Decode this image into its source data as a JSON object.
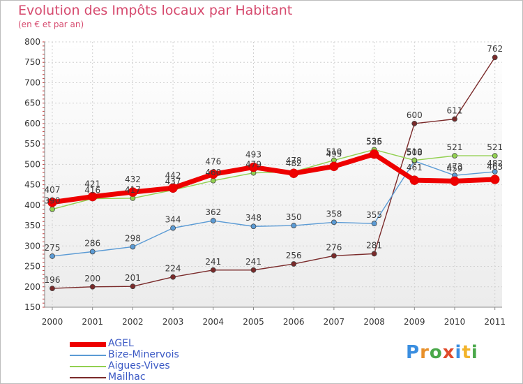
{
  "header": {
    "title": "Evolution des Impôts locaux par Habitant",
    "subtitle": "(en € et par an)"
  },
  "logo": {
    "letters": [
      "P",
      "r",
      "o",
      "x",
      "i",
      "t",
      "i"
    ],
    "colors": [
      "#3a8ee0",
      "#e8902a",
      "#4aa84a",
      "#e04a2a",
      "#3a8ee0",
      "#f2b32a",
      "#4aa84a"
    ]
  },
  "chart_data": {
    "type": "line",
    "title": "Evolution des Impôts locaux par Habitant",
    "subtitle": "(en € et par an)",
    "xlabel": "",
    "ylabel": "",
    "ylim": [
      150,
      800
    ],
    "yticks": [
      150,
      200,
      250,
      300,
      350,
      400,
      450,
      500,
      550,
      600,
      650,
      700,
      750,
      800
    ],
    "grid": true,
    "legend_position": "bottom-left",
    "categories": [
      "2000",
      "2001",
      "2002",
      "2003",
      "2004",
      "2005",
      "2006",
      "2007",
      "2008",
      "2009",
      "2010",
      "2011"
    ],
    "series": [
      {
        "name": "AGEL",
        "color": "#ee0000",
        "emphasis": true,
        "values": [
          407,
          421,
          432,
          442,
          476,
          493,
          478,
          495,
          525,
          461,
          459,
          463
        ],
        "labels": [
          "407",
          "421",
          "432",
          "442",
          "476",
          "493",
          "478",
          "495",
          "525",
          "461",
          "459",
          "463"
        ]
      },
      {
        "name": "Bize-Minervois",
        "color": "#5b9bd5",
        "values": [
          275,
          286,
          298,
          344,
          362,
          348,
          350,
          358,
          355,
          508,
          473,
          482
        ],
        "labels": [
          "275",
          "286",
          "298",
          "344",
          "362",
          "348",
          "350",
          "358",
          "355",
          "508",
          "473",
          "482"
        ]
      },
      {
        "name": "Aigues-Vives",
        "color": "#92d050",
        "values": [
          390,
          416,
          417,
          437,
          460,
          479,
          482,
          510,
          536,
          510,
          521,
          521
        ],
        "labels": [
          "390",
          "416",
          "417",
          "437",
          "460",
          "479",
          "482",
          "510",
          "536",
          "510",
          "521",
          "521"
        ]
      },
      {
        "name": "Mailhac",
        "color": "#7a2a2a",
        "values": [
          196,
          200,
          201,
          224,
          241,
          241,
          256,
          276,
          281,
          600,
          611,
          762
        ],
        "labels": [
          "196",
          "200",
          "201",
          "224",
          "241",
          "241",
          "256",
          "276",
          "281",
          "600",
          "611",
          "762"
        ]
      }
    ]
  }
}
